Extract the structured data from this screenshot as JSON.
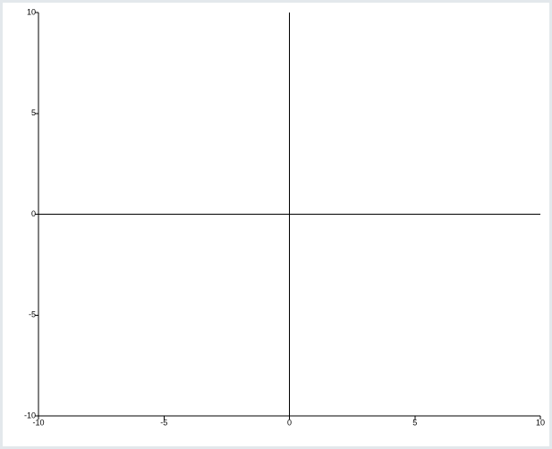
{
  "chart_data": {
    "type": "line",
    "title": "",
    "xlabel": "",
    "ylabel": "",
    "xlim": [
      -10,
      10
    ],
    "ylim": [
      -10,
      10
    ],
    "x_ticks": [
      -10,
      -5,
      0,
      5,
      10
    ],
    "y_ticks": [
      -10,
      -5,
      0,
      5,
      10
    ],
    "x_tick_labels": [
      "-10",
      "-5",
      "0",
      "5",
      "10"
    ],
    "y_tick_labels": [
      "-10",
      "-5",
      "0",
      "5",
      "10"
    ],
    "grid": false,
    "series": []
  },
  "colors": {
    "frame_border": "#e3e8ec",
    "axis": "#000000",
    "background": "#ffffff"
  }
}
